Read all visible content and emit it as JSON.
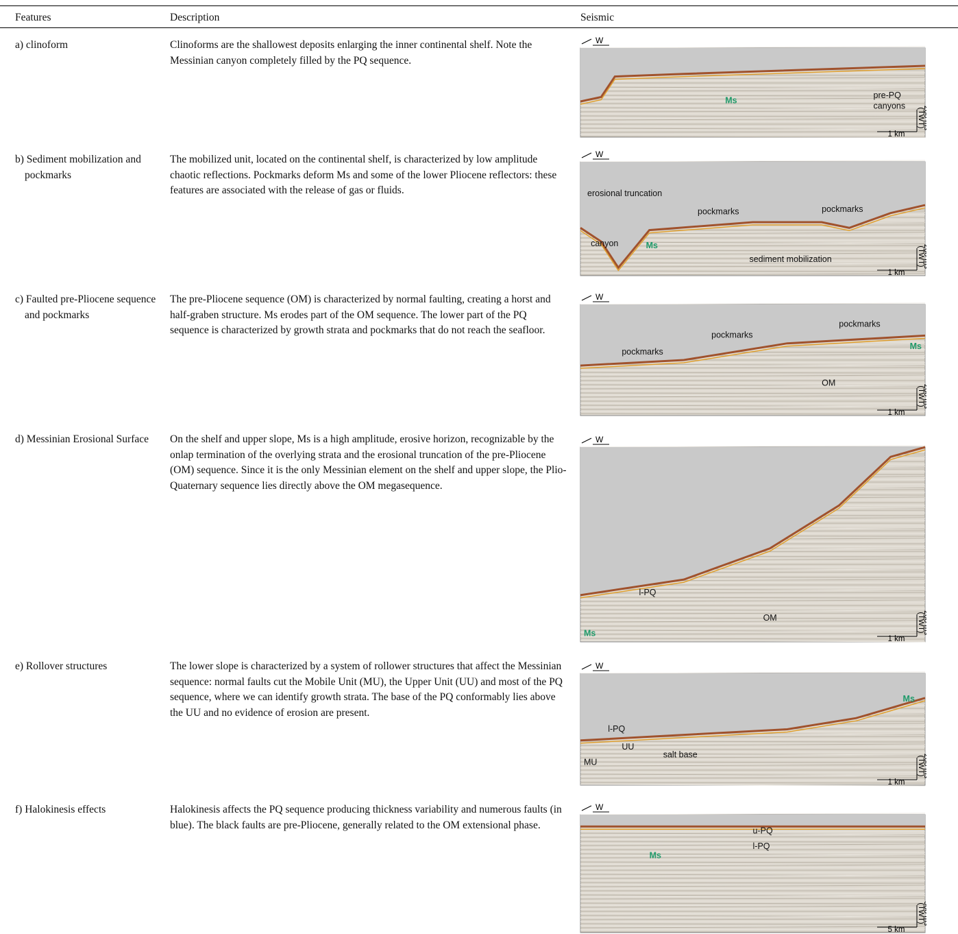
{
  "table": {
    "headers": [
      "Features",
      "Description",
      "Seismic"
    ],
    "rows": [
      {
        "feature": "a) clinoform",
        "description": "Clinoforms are the shallowest deposits enlarging the inner continental shelf. Note the Messinian canyon completely filled by the PQ sequence.",
        "seismic": {
          "direction": "W",
          "labels": [
            "Ms",
            "pre-PQ",
            "canyons"
          ],
          "scale_v": "200 ms",
          "scale_v_unit": "(TWT)",
          "scale_h": "1 km"
        }
      },
      {
        "feature": "b) Sediment mobilization and pockmarks",
        "description": "The mobilized unit, located on the continental shelf, is characterized by low amplitude chaotic reflections. Pockmarks deform Ms and some of the lower Pliocene reflectors: these features are associated with the release of gas or fluids.",
        "seismic": {
          "direction": "W",
          "labels": [
            "erosional truncation",
            "pockmarks",
            "pockmarks",
            "canyon",
            "Ms",
            "sediment mobilization"
          ],
          "scale_v": "200 ms",
          "scale_v_unit": "(TWT)",
          "scale_h": "1 km"
        }
      },
      {
        "feature": "c) Faulted pre-Pliocene sequence and pockmarks",
        "description": "The pre-Pliocene sequence (OM) is characterized by normal faulting, creating a horst and half-graben structure. Ms erodes part of the OM sequence. The lower part of the PQ sequence is characterized by growth strata and pockmarks that do not reach the seafloor.",
        "seismic": {
          "direction": "W",
          "labels": [
            "pockmarks",
            "pockmarks",
            "pockmarks",
            "Ms",
            "OM"
          ],
          "scale_v": "200 ms",
          "scale_v_unit": "(TWT)",
          "scale_h": "1 km"
        }
      },
      {
        "feature": "d) Messinian Erosional Surface",
        "description": "On the shelf and upper slope, Ms is a high amplitude, erosive horizon, recognizable by the onlap termination of the overlying strata and the erosional truncation of the pre-Pliocene (OM) sequence. Since it is the only Messinian element on the shelf and upper slope, the Plio-Quaternary sequence lies directly above the OM megasequence.",
        "seismic": {
          "direction": "W",
          "labels": [
            "l-PQ",
            "OM",
            "Ms"
          ],
          "scale_v": "200 ms",
          "scale_v_unit": "(TWT)",
          "scale_h": "1 km"
        }
      },
      {
        "feature": "e) Rollover structures",
        "description": "The lower slope is characterized by a system of rollower structures that affect the Messinian sequence: normal faults cut the Mobile Unit (MU), the Upper Unit (UU) and most of the PQ sequence, where we can identify growth strata. The base of the PQ conformably lies above the UU and no evidence of erosion are present.",
        "seismic": {
          "direction": "W",
          "labels": [
            "Ms",
            "l-PQ",
            "UU",
            "MU",
            "salt base"
          ],
          "scale_v": "200 ms",
          "scale_v_unit": "(TWT)",
          "scale_h": "1 km"
        }
      },
      {
        "feature": "f) Halokinesis effects",
        "description": "Halokinesis affects the PQ sequence producing thickness variability and numerous faults (in blue). The black faults are pre-Pliocene, generally related to the OM extensional phase.",
        "seismic": {
          "direction": "W",
          "labels": [
            "u-PQ",
            "l-PQ",
            "Ms"
          ],
          "scale_v": "500 ms",
          "scale_v_unit": "(TWT)",
          "scale_h": "5 km"
        }
      }
    ]
  }
}
